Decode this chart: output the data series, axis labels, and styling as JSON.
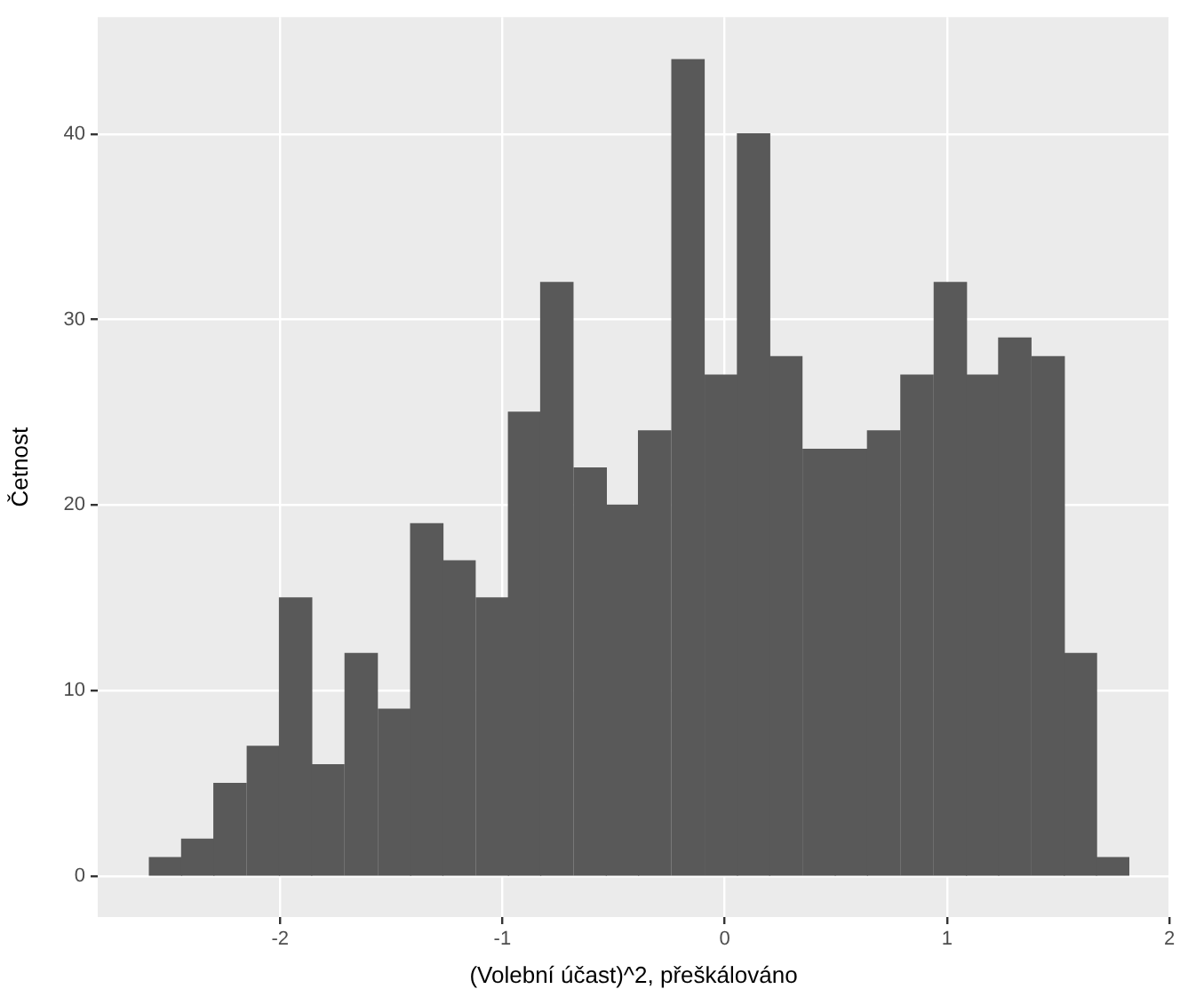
{
  "chart_data": {
    "type": "histogram",
    "xlabel": "(Volební účast)^2, přeškálováno",
    "ylabel": "Četnost",
    "bins": [
      -2.59,
      -2.44,
      -2.3,
      -2.15,
      -2.0,
      -1.86,
      -1.71,
      -1.56,
      -1.41,
      -1.27,
      -1.12,
      -0.97,
      -0.83,
      -0.68,
      -0.53,
      -0.39,
      -0.24,
      -0.09,
      0.06,
      0.2,
      0.35,
      0.5,
      0.64,
      0.79,
      0.94,
      1.09,
      1.23,
      1.38,
      1.53,
      1.67,
      1.82
    ],
    "values": [
      1,
      2,
      5,
      7,
      15,
      6,
      12,
      9,
      19,
      17,
      15,
      25,
      32,
      22,
      20,
      24,
      44,
      27,
      40,
      28,
      23,
      23,
      24,
      27,
      32,
      27,
      29,
      28,
      12,
      1
    ],
    "color": "#595959",
    "xlim": [
      -2.82,
      2.0
    ],
    "xticks": [
      -2,
      -1,
      0,
      1,
      2
    ],
    "ylim": [
      -2.2,
      46.3
    ],
    "yticks": [
      0,
      10,
      20,
      30,
      40
    ],
    "grid": true,
    "legend": false
  }
}
